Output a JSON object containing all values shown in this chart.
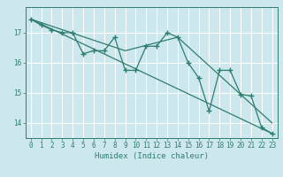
{
  "xlabel": "Humidex (Indice chaleur)",
  "ylabel": "",
  "background_color": "#cce8ee",
  "grid_color": "#ffffff",
  "line_color": "#2e7d6e",
  "xlim": [
    -0.5,
    23.5
  ],
  "ylim": [
    13.5,
    17.85
  ],
  "yticks": [
    14,
    15,
    16,
    17
  ],
  "xticks": [
    0,
    1,
    2,
    3,
    4,
    5,
    6,
    7,
    8,
    9,
    10,
    11,
    12,
    13,
    14,
    15,
    16,
    17,
    18,
    19,
    20,
    21,
    22,
    23
  ],
  "series": [
    [
      0,
      17.45
    ],
    [
      1,
      17.25
    ],
    [
      2,
      17.1
    ],
    [
      3,
      17.0
    ],
    [
      4,
      17.0
    ],
    [
      5,
      16.3
    ],
    [
      6,
      16.4
    ],
    [
      7,
      16.4
    ],
    [
      8,
      16.85
    ],
    [
      9,
      15.75
    ],
    [
      10,
      15.75
    ],
    [
      11,
      16.55
    ],
    [
      12,
      16.55
    ],
    [
      13,
      17.0
    ],
    [
      14,
      16.85
    ],
    [
      15,
      16.0
    ],
    [
      16,
      15.5
    ],
    [
      17,
      14.4
    ],
    [
      18,
      15.75
    ],
    [
      19,
      15.75
    ],
    [
      20,
      14.95
    ],
    [
      21,
      14.9
    ],
    [
      22,
      13.85
    ],
    [
      23,
      13.65
    ]
  ],
  "trend_line": [
    [
      0,
      17.45
    ],
    [
      23,
      13.65
    ]
  ],
  "second_trend": [
    [
      0,
      17.45
    ],
    [
      9,
      16.4
    ],
    [
      14,
      16.85
    ],
    [
      23,
      14.0
    ]
  ]
}
